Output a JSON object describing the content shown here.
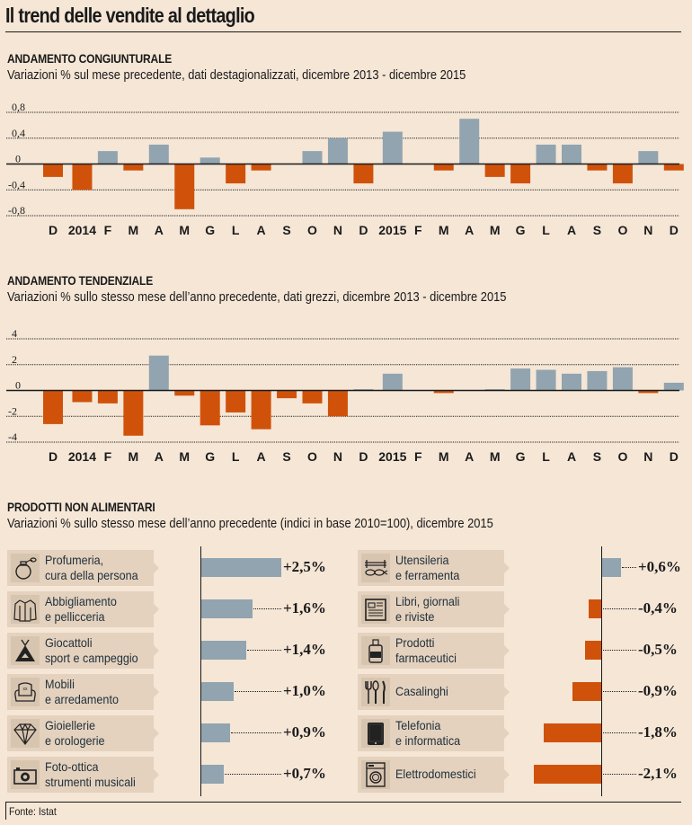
{
  "title": "Il trend delle vendite al dettaglio",
  "colors": {
    "positive": "#91a4b0",
    "negative": "#d0520a",
    "background": "#f5e6d6",
    "label_bg": "#e4d2be"
  },
  "source": "Fonte: Istat",
  "chart_data": [
    {
      "type": "bar",
      "id": "congiunturale",
      "title": "ANDAMENTO CONGIUNTURALE",
      "subtitle": "Variazioni % sul mese precedente, dati destagionalizzati, dicembre 2013 - dicembre 2015",
      "categories": [
        "D",
        "2014",
        "F",
        "M",
        "A",
        "M",
        "G",
        "L",
        "A",
        "S",
        "O",
        "N",
        "D",
        "2015",
        "F",
        "M",
        "A",
        "M",
        "G",
        "L",
        "A",
        "S",
        "O",
        "N",
        "D"
      ],
      "values": [
        -0.2,
        -0.4,
        0.2,
        -0.1,
        0.3,
        -0.7,
        0.1,
        -0.3,
        -0.1,
        0,
        0.2,
        0.4,
        -0.3,
        0.5,
        0,
        -0.1,
        0.7,
        -0.2,
        -0.3,
        0.3,
        0.3,
        -0.1,
        -0.3,
        0.2,
        -0.1
      ],
      "yticks": [
        0.8,
        0.4,
        0,
        -0.4,
        -0.8
      ],
      "ytick_labels": [
        "0,8",
        "0,4",
        "0",
        "-0,4",
        "-0,8"
      ],
      "ylim": [
        -0.8,
        0.8
      ],
      "grid": true,
      "xlabel": "",
      "ylabel": ""
    },
    {
      "type": "bar",
      "id": "tendenziale",
      "title": "ANDAMENTO TENDENZIALE",
      "subtitle": "Variazioni % sullo stesso mese dell’anno precedente, dati grezzi, dicembre 2013 - dicembre 2015",
      "categories": [
        "D",
        "2014",
        "F",
        "M",
        "A",
        "M",
        "G",
        "L",
        "A",
        "S",
        "O",
        "N",
        "D",
        "2015",
        "F",
        "M",
        "A",
        "M",
        "G",
        "L",
        "A",
        "S",
        "O",
        "N",
        "D"
      ],
      "values": [
        -2.6,
        -0.9,
        -1.0,
        -3.5,
        2.7,
        -0.4,
        -2.7,
        -1.7,
        -3.0,
        -0.6,
        -1.0,
        -2.0,
        0.1,
        1.3,
        0,
        -0.2,
        0,
        0.1,
        1.7,
        1.6,
        1.3,
        1.5,
        1.8,
        -0.2,
        0.6
      ],
      "yticks": [
        4,
        2,
        0,
        -2,
        -4
      ],
      "ytick_labels": [
        "4",
        "2",
        "0",
        "-2",
        "-4"
      ],
      "ylim": [
        -4,
        4
      ],
      "grid": true,
      "xlabel": "",
      "ylabel": ""
    },
    {
      "type": "bar",
      "id": "non_alimentari",
      "orientation": "horizontal",
      "title": "PRODOTTI NON ALIMENTARI",
      "subtitle": "Variazioni % sullo stesso mese dell’anno precedente (indici in base 2010=100), dicembre 2015",
      "categories": [
        "Profumeria, cura della persona",
        "Abbigliamento e pellicceria",
        "Giocattoli sport e campeggio",
        "Mobili e arredamento",
        "Gioiellerie e orologerie",
        "Foto-ottica strumenti musicali",
        "Utensileria e ferramenta",
        "Libri, giornali e riviste",
        "Prodotti farmaceutici",
        "Casalinghi",
        "Telefonia e informatica",
        "Elettrodomestici"
      ],
      "values": [
        2.5,
        1.6,
        1.4,
        1.0,
        0.9,
        0.7,
        0.6,
        -0.4,
        -0.5,
        -0.9,
        -1.8,
        -2.1
      ],
      "value_labels": [
        "+2,5%",
        "+1,6%",
        "+1,4%",
        "+1,0%",
        "+0,9%",
        "+0,7%",
        "+0,6%",
        "-0,4%",
        "-0,5%",
        "-0,9%",
        "-1,8%",
        "-2,1%"
      ]
    }
  ],
  "products": {
    "left": [
      {
        "line1": "Profumeria,",
        "line2": "cura della persona",
        "icon": "perfume-icon",
        "value": 2.5,
        "label": "+2,5%"
      },
      {
        "line1": "Abbigliamento",
        "line2": "e pellicceria",
        "icon": "jacket-icon",
        "value": 1.6,
        "label": "+1,6%"
      },
      {
        "line1": "Giocattoli",
        "line2": "sport e campeggio",
        "icon": "tent-icon",
        "value": 1.4,
        "label": "+1,4%"
      },
      {
        "line1": "Mobili",
        "line2": "e arredamento",
        "icon": "armchair-icon",
        "value": 1.0,
        "label": "+1,0%"
      },
      {
        "line1": "Gioiellerie",
        "line2": "e orologerie",
        "icon": "diamond-icon",
        "value": 0.9,
        "label": "+0,9%"
      },
      {
        "line1": "Foto-ottica",
        "line2": "strumenti musicali",
        "icon": "camera-icon",
        "value": 0.7,
        "label": "+0,7%"
      }
    ],
    "right": [
      {
        "line1": "Utensileria",
        "line2": "e ferramenta",
        "icon": "tools-icon",
        "value": 0.6,
        "label": "+0,6%"
      },
      {
        "line1": "Libri, giornali",
        "line2": "e riviste",
        "icon": "newspaper-icon",
        "value": -0.4,
        "label": "-0,4%"
      },
      {
        "line1": "Prodotti",
        "line2": "farmaceutici",
        "icon": "medicine-bottle-icon",
        "value": -0.5,
        "label": "-0,5%"
      },
      {
        "line1": "Casalinghi",
        "line2": "",
        "icon": "cutlery-icon",
        "value": -0.9,
        "label": "-0,9%"
      },
      {
        "line1": "Telefonia",
        "line2": "e informatica",
        "icon": "tablet-icon",
        "value": -1.8,
        "label": "-1,8%"
      },
      {
        "line1": "Elettrodomestici",
        "line2": "",
        "icon": "washing-machine-icon",
        "value": -2.1,
        "label": "-2,1%"
      }
    ]
  }
}
